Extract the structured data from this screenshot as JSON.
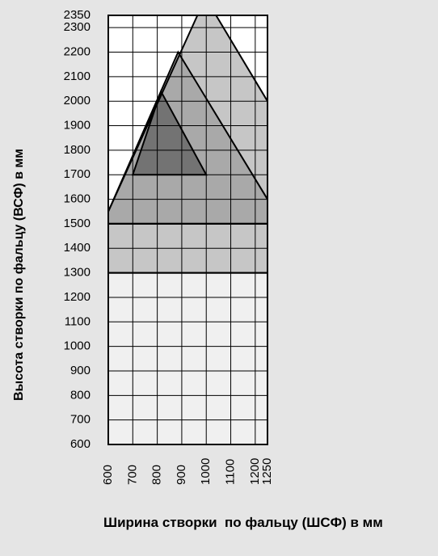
{
  "chart_data": {
    "type": "region",
    "y_label": "Высота створки по фальцу (ВСФ)  в мм",
    "x_label": "Ширина створки  по фальцу (ШСФ) в мм",
    "xlim": [
      600,
      1250
    ],
    "ylim": [
      600,
      2350
    ],
    "xticks": [
      600,
      700,
      800,
      900,
      1000,
      1100,
      1200,
      1250
    ],
    "yticks": [
      600,
      700,
      800,
      900,
      1000,
      1100,
      1200,
      1300,
      1400,
      1500,
      1600,
      1700,
      1800,
      1900,
      2000,
      2100,
      2200,
      2300,
      2350
    ],
    "grid": true,
    "regions": [
      {
        "color": "#f0f0f0",
        "x": [
          600,
          600,
          1250,
          1250
        ],
        "y": [
          600,
          1300,
          1300,
          600
        ]
      },
      {
        "color": "#c6c6c6",
        "x": [
          600,
          600,
          1250,
          1250
        ],
        "y": [
          1300,
          1500,
          1500,
          1300
        ]
      },
      {
        "color": "#c6c6c6",
        "x": [
          600,
          600,
          964,
          1040,
          1250,
          1250
        ],
        "y": [
          1500,
          1550,
          2350,
          2350,
          2000,
          1500
        ]
      },
      {
        "color": "#a9a9a9",
        "x": [
          600,
          600,
          885,
          1250,
          1250
        ],
        "y": [
          1500,
          1550,
          2200,
          1600,
          1500
        ]
      },
      {
        "color": "#737373",
        "x": [
          700,
          815,
          1000
        ],
        "y": [
          1700,
          2040,
          1700
        ]
      }
    ]
  }
}
